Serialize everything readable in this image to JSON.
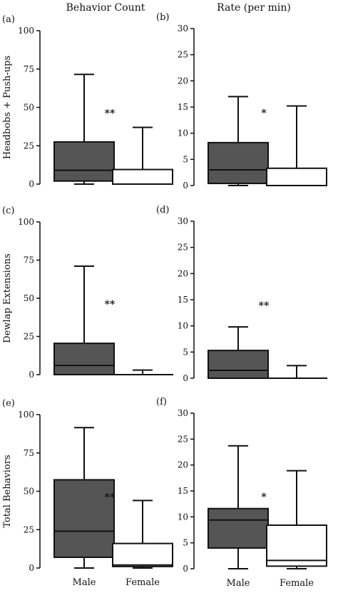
{
  "column_titles": [
    "Behavior Count",
    "Rate (per min)"
  ],
  "chart_data": [
    {
      "type": "box",
      "panel_label": "(a)",
      "ylabel": "Headbobs + Push-ups",
      "ylim": [
        0,
        100
      ],
      "yticks": [
        0,
        25,
        50,
        75,
        100
      ],
      "categories": [
        "Male",
        "Female"
      ],
      "boxes": [
        {
          "name": "Male",
          "min": 0,
          "q1": 2,
          "median": 9,
          "q3": 27.5,
          "max": 71.5,
          "fill": "#555555"
        },
        {
          "name": "Female",
          "min": 0,
          "q1": 0,
          "median": 0,
          "q3": 9.5,
          "max": 37,
          "fill": "#ffffff"
        }
      ],
      "significance": "**"
    },
    {
      "type": "box",
      "panel_label": "(b)",
      "ylabel": "",
      "ylim": [
        0,
        30
      ],
      "yticks": [
        0,
        5,
        10,
        15,
        20,
        25,
        30
      ],
      "categories": [
        "Male",
        "Female"
      ],
      "boxes": [
        {
          "name": "Male",
          "min": 0,
          "q1": 0.4,
          "median": 3,
          "q3": 8.2,
          "max": 17,
          "fill": "#555555"
        },
        {
          "name": "Female",
          "min": 0,
          "q1": 0,
          "median": 0,
          "q3": 3.3,
          "max": 15.2,
          "fill": "#ffffff"
        }
      ],
      "significance": "*"
    },
    {
      "type": "box",
      "panel_label": "(c)",
      "ylabel": "Dewlap Extensions",
      "ylim": [
        0,
        100
      ],
      "yticks": [
        0,
        25,
        50,
        75,
        100
      ],
      "categories": [
        "Male",
        "Female"
      ],
      "boxes": [
        {
          "name": "Male",
          "min": 0,
          "q1": 0,
          "median": 6,
          "q3": 20.5,
          "max": 71,
          "fill": "#555555"
        },
        {
          "name": "Female",
          "min": 0,
          "q1": 0,
          "median": 0,
          "q3": 0,
          "max": 3,
          "fill": "#ffffff"
        }
      ],
      "significance": "**"
    },
    {
      "type": "box",
      "panel_label": "(d)",
      "ylabel": "",
      "ylim": [
        0,
        30
      ],
      "yticks": [
        0,
        5,
        10,
        15,
        20,
        25,
        30
      ],
      "categories": [
        "Male",
        "Female"
      ],
      "boxes": [
        {
          "name": "Male",
          "min": 0,
          "q1": 0,
          "median": 1.5,
          "q3": 5.3,
          "max": 9.8,
          "fill": "#555555"
        },
        {
          "name": "Female",
          "min": 0,
          "q1": 0,
          "median": 0,
          "q3": 0,
          "max": 2.4,
          "fill": "#ffffff"
        }
      ],
      "significance": "**"
    },
    {
      "type": "box",
      "panel_label": "(e)",
      "ylabel": "Total Behaviors",
      "ylim": [
        0,
        100
      ],
      "yticks": [
        0,
        25,
        50,
        75,
        100
      ],
      "categories": [
        "Male",
        "Female"
      ],
      "boxes": [
        {
          "name": "Male",
          "min": 0,
          "q1": 7,
          "median": 24,
          "q3": 57.5,
          "max": 91.5,
          "fill": "#555555"
        },
        {
          "name": "Female",
          "min": 0,
          "q1": 1,
          "median": 2,
          "q3": 16,
          "max": 44,
          "fill": "#ffffff"
        }
      ],
      "significance": "**"
    },
    {
      "type": "box",
      "panel_label": "(f)",
      "ylabel": "",
      "ylim": [
        0,
        30
      ],
      "yticks": [
        0,
        5,
        10,
        15,
        20,
        25,
        30
      ],
      "categories": [
        "Male",
        "Female"
      ],
      "boxes": [
        {
          "name": "Male",
          "min": 0,
          "q1": 4,
          "median": 9.4,
          "q3": 11.6,
          "max": 23.7,
          "fill": "#555555"
        },
        {
          "name": "Female",
          "min": 0,
          "q1": 0.5,
          "median": 1.6,
          "q3": 8.4,
          "max": 18.9,
          "fill": "#ffffff"
        }
      ],
      "significance": "*"
    }
  ]
}
